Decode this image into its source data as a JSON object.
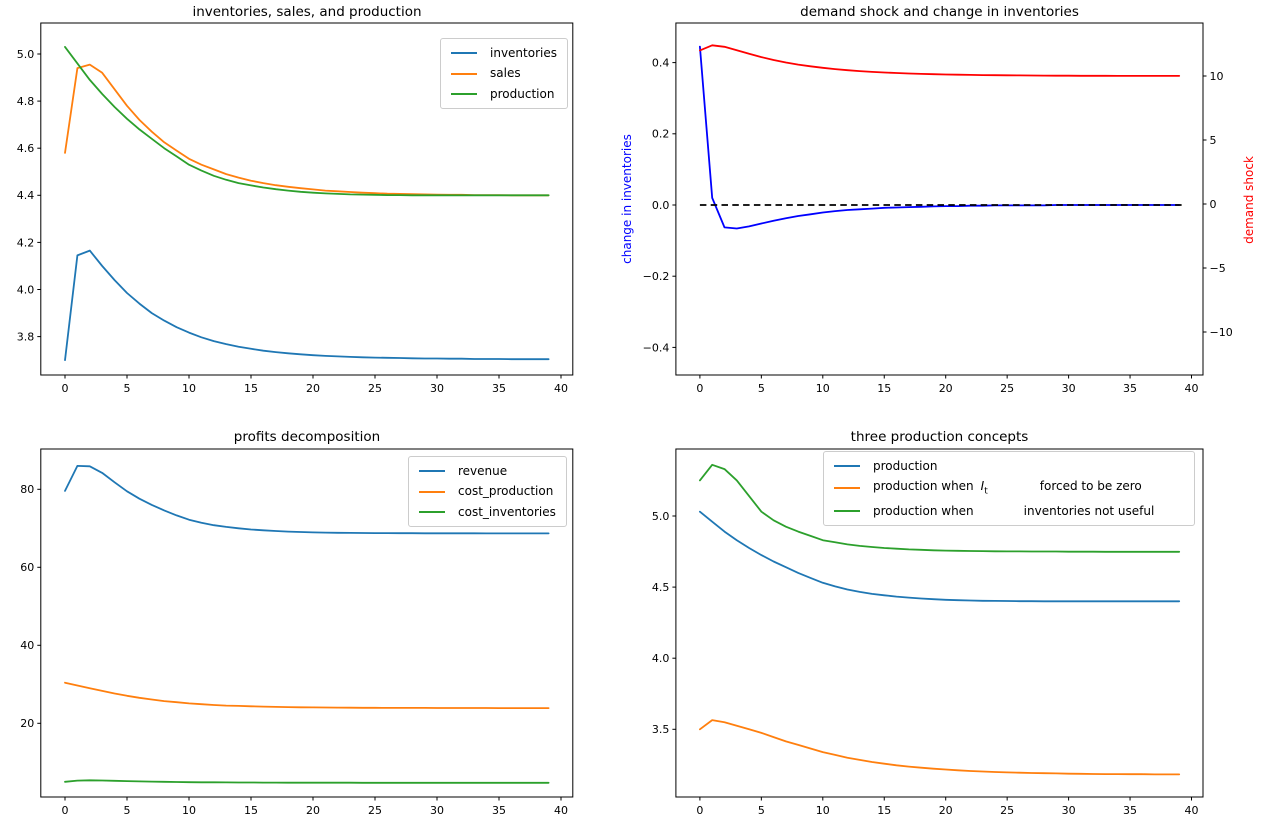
{
  "figure": {
    "background": "#ffffff"
  },
  "chart_data": [
    {
      "id": "inventories-sales-production",
      "type": "line",
      "title": "inventories, sales, and production",
      "xlabel": "",
      "ylabel": "",
      "xlim": [
        -1.95,
        40.95
      ],
      "ylim": [
        3.64,
        5.13
      ],
      "legend_position": "upper right",
      "grid": false,
      "x": {
        "start": 0,
        "end": 39,
        "count": 40
      },
      "xticks": {
        "values": [
          0,
          5,
          10,
          15,
          20,
          25,
          30,
          35,
          40
        ],
        "labels": [
          "0",
          "5",
          "10",
          "15",
          "20",
          "25",
          "30",
          "35",
          "40"
        ]
      },
      "yticks": {
        "values": [
          3.8,
          4.0,
          4.2,
          4.4,
          4.6,
          4.8,
          5.0
        ],
        "labels": [
          "3.8",
          "4.0",
          "4.2",
          "4.4",
          "4.6",
          "4.8",
          "5.0"
        ]
      },
      "series": [
        {
          "name": "inventories",
          "color": "#1f77b4",
          "values": [
            3.7,
            4.145,
            4.165,
            4.1,
            4.04,
            3.985,
            3.94,
            3.9,
            3.868,
            3.84,
            3.817,
            3.797,
            3.781,
            3.768,
            3.757,
            3.748,
            3.74,
            3.734,
            3.729,
            3.725,
            3.721,
            3.718,
            3.716,
            3.714,
            3.712,
            3.711,
            3.71,
            3.709,
            3.708,
            3.707,
            3.707,
            3.706,
            3.706,
            3.705,
            3.705,
            3.705,
            3.704,
            3.704,
            3.704,
            3.704
          ]
        },
        {
          "name": "sales",
          "color": "#ff7f0e",
          "values": [
            4.58,
            4.94,
            4.955,
            4.92,
            4.85,
            4.78,
            4.72,
            4.67,
            4.625,
            4.59,
            4.555,
            4.53,
            4.51,
            4.49,
            4.475,
            4.462,
            4.452,
            4.443,
            4.436,
            4.43,
            4.425,
            4.42,
            4.417,
            4.414,
            4.411,
            4.409,
            4.407,
            4.406,
            4.405,
            4.404,
            4.403,
            4.402,
            4.402,
            4.401,
            4.401,
            4.401,
            4.4,
            4.4,
            4.4,
            4.4
          ]
        },
        {
          "name": "production",
          "color": "#2ca02c",
          "values": [
            5.03,
            4.96,
            4.89,
            4.83,
            4.775,
            4.725,
            4.68,
            4.64,
            4.6,
            4.565,
            4.53,
            4.505,
            4.483,
            4.466,
            4.452,
            4.442,
            4.433,
            4.426,
            4.42,
            4.415,
            4.411,
            4.408,
            4.406,
            4.404,
            4.403,
            4.402,
            4.401,
            4.401,
            4.4,
            4.4,
            4.4,
            4.4,
            4.4,
            4.4,
            4.4,
            4.4,
            4.4,
            4.4,
            4.4,
            4.4
          ]
        }
      ]
    },
    {
      "id": "demand-shock-change-in-inventories",
      "type": "line",
      "title": "demand shock and change in inventories",
      "xlabel": "",
      "xlim": [
        -1.95,
        40.95
      ],
      "grid": false,
      "x": {
        "start": 0,
        "end": 39,
        "count": 40
      },
      "xticks": {
        "values": [
          0,
          5,
          10,
          15,
          20,
          25,
          30,
          35,
          40
        ],
        "labels": [
          "0",
          "5",
          "10",
          "15",
          "20",
          "25",
          "30",
          "35",
          "40"
        ]
      },
      "left_axis": {
        "label": "change in inventories",
        "color": "#0000ff",
        "ylim": [
          -0.478,
          0.511
        ]
      },
      "right_axis": {
        "label": "demand shock",
        "color": "#ff0000",
        "ylim": [
          -13.3,
          14.1
        ]
      },
      "yticks": {
        "values": [
          -0.4,
          -0.2,
          0.0,
          0.2,
          0.4
        ],
        "labels": [
          "−0.4",
          "−0.2",
          "0.0",
          "0.2",
          "0.4"
        ]
      },
      "yticks_right": {
        "values": [
          -10,
          -5,
          0,
          5,
          10
        ],
        "labels": [
          "−10",
          "−5",
          "0",
          "5",
          "10"
        ]
      },
      "zero_line": {
        "axis": "left",
        "value": 0,
        "color": "#000000",
        "style": "dashed"
      },
      "series": [
        {
          "name": "change in inventories",
          "color": "#0000ff",
          "axis": "left",
          "values": [
            0.445,
            0.02,
            -0.063,
            -0.066,
            -0.06,
            -0.052,
            -0.044,
            -0.037,
            -0.031,
            -0.026,
            -0.021,
            -0.017,
            -0.014,
            -0.012,
            -0.01,
            -0.008,
            -0.007,
            -0.006,
            -0.005,
            -0.004,
            -0.003,
            -0.003,
            -0.002,
            -0.002,
            -0.001,
            -0.001,
            -0.001,
            -0.001,
            -0.001,
            0,
            0,
            0,
            0,
            0,
            0,
            0,
            0,
            0,
            0,
            0
          ]
        },
        {
          "name": "demand shock",
          "color": "#ff0000",
          "axis": "right",
          "values": [
            12.0,
            12.4,
            12.28,
            12.016,
            11.735,
            11.477,
            11.249,
            11.056,
            10.893,
            10.755,
            10.638,
            10.539,
            10.455,
            10.384,
            10.324,
            10.274,
            10.232,
            10.196,
            10.166,
            10.14,
            10.118,
            10.1,
            10.085,
            10.072,
            10.061,
            10.051,
            10.043,
            10.037,
            10.031,
            10.026,
            10.022,
            10.019,
            10.016,
            10.013,
            10.011,
            10.01,
            10.008,
            10.007,
            10.006,
            10.005
          ]
        }
      ]
    },
    {
      "id": "profits-decomposition",
      "type": "line",
      "title": "profits decomposition",
      "xlabel": "",
      "ylabel": "",
      "xlim": [
        -1.95,
        40.95
      ],
      "ylim": [
        1.1,
        90.3
      ],
      "legend_position": "upper right",
      "grid": false,
      "x": {
        "start": 0,
        "end": 39,
        "count": 40
      },
      "xticks": {
        "values": [
          0,
          5,
          10,
          15,
          20,
          25,
          30,
          35,
          40
        ],
        "labels": [
          "0",
          "5",
          "10",
          "15",
          "20",
          "25",
          "30",
          "35",
          "40"
        ]
      },
      "yticks": {
        "values": [
          20,
          40,
          60,
          80
        ],
        "labels": [
          "20",
          "40",
          "60",
          "80"
        ]
      },
      "series": [
        {
          "name": "revenue",
          "color": "#1f77b4",
          "values": [
            79.6,
            86.0,
            85.9,
            84.2,
            81.8,
            79.5,
            77.6,
            76.0,
            74.6,
            73.3,
            72.2,
            71.4,
            70.8,
            70.35,
            70.0,
            69.7,
            69.5,
            69.3,
            69.15,
            69.05,
            68.95,
            68.9,
            68.85,
            68.82,
            68.8,
            68.78,
            68.76,
            68.75,
            68.74,
            68.73,
            68.72,
            68.72,
            68.71,
            68.71,
            68.7,
            68.7,
            68.7,
            68.7,
            68.7,
            68.7
          ]
        },
        {
          "name": "cost_production",
          "color": "#ff7f0e",
          "values": [
            30.4,
            29.7,
            29.0,
            28.3,
            27.65,
            27.05,
            26.55,
            26.1,
            25.7,
            25.4,
            25.1,
            24.9,
            24.7,
            24.55,
            24.45,
            24.35,
            24.27,
            24.2,
            24.15,
            24.1,
            24.07,
            24.04,
            24.02,
            24.0,
            23.98,
            23.97,
            23.96,
            23.95,
            23.94,
            23.94,
            23.93,
            23.93,
            23.92,
            23.92,
            23.92,
            23.91,
            23.91,
            23.91,
            23.91,
            23.91
          ]
        },
        {
          "name": "cost_inventories",
          "color": "#2ca02c",
          "values": [
            5.0,
            5.3,
            5.38,
            5.33,
            5.25,
            5.17,
            5.1,
            5.04,
            4.99,
            4.95,
            4.91,
            4.88,
            4.86,
            4.84,
            4.82,
            4.81,
            4.8,
            4.79,
            4.78,
            4.775,
            4.77,
            4.765,
            4.76,
            4.758,
            4.755,
            4.753,
            4.751,
            4.75,
            4.749,
            4.748,
            4.747,
            4.746,
            4.745,
            4.745,
            4.744,
            4.744,
            4.743,
            4.743,
            4.743,
            4.743
          ]
        }
      ]
    },
    {
      "id": "three-production-concepts",
      "type": "line",
      "title": "three production concepts",
      "xlabel": "",
      "ylabel": "",
      "xlim": [
        -1.95,
        40.95
      ],
      "ylim": [
        3.02,
        5.47
      ],
      "legend_position": "upper center-right",
      "grid": false,
      "x": {
        "start": 0,
        "end": 39,
        "count": 40
      },
      "xticks": {
        "values": [
          0,
          5,
          10,
          15,
          20,
          25,
          30,
          35,
          40
        ],
        "labels": [
          "0",
          "5",
          "10",
          "15",
          "20",
          "25",
          "30",
          "35",
          "40"
        ]
      },
      "yticks": {
        "values": [
          3.5,
          4.0,
          4.5,
          5.0
        ],
        "labels": [
          "3.5",
          "4.0",
          "4.5",
          "5.0"
        ]
      },
      "series": [
        {
          "name": "production",
          "color": "#1f77b4",
          "legend": {
            "prefix": "production",
            "suffix": ""
          },
          "values": [
            5.03,
            4.96,
            4.89,
            4.83,
            4.775,
            4.725,
            4.68,
            4.64,
            4.6,
            4.565,
            4.53,
            4.505,
            4.483,
            4.466,
            4.452,
            4.442,
            4.433,
            4.426,
            4.42,
            4.415,
            4.411,
            4.408,
            4.406,
            4.404,
            4.403,
            4.402,
            4.401,
            4.401,
            4.4,
            4.4,
            4.4,
            4.4,
            4.4,
            4.4,
            4.4,
            4.4,
            4.4,
            4.4,
            4.4,
            4.4
          ]
        },
        {
          "name": "production when I_t forced to be zero",
          "color": "#ff7f0e",
          "legend": {
            "prefix": "production when",
            "math_base": "I",
            "math_sub": "t",
            "suffix": "forced to be zero"
          },
          "values": [
            3.5,
            3.565,
            3.55,
            3.525,
            3.5,
            3.475,
            3.445,
            3.415,
            3.39,
            3.365,
            3.34,
            3.32,
            3.3,
            3.285,
            3.27,
            3.258,
            3.247,
            3.238,
            3.23,
            3.223,
            3.217,
            3.212,
            3.207,
            3.203,
            3.2,
            3.197,
            3.195,
            3.193,
            3.191,
            3.19,
            3.188,
            3.187,
            3.186,
            3.185,
            3.185,
            3.184,
            3.184,
            3.183,
            3.183,
            3.183
          ]
        },
        {
          "name": "production when inventories not useful",
          "color": "#2ca02c",
          "legend": {
            "prefix": "production when",
            "suffix": "inventories not useful"
          },
          "values": [
            5.25,
            5.36,
            5.33,
            5.25,
            5.14,
            5.03,
            4.97,
            4.925,
            4.89,
            4.86,
            4.83,
            4.815,
            4.8,
            4.79,
            4.782,
            4.775,
            4.77,
            4.765,
            4.762,
            4.759,
            4.757,
            4.755,
            4.754,
            4.753,
            4.752,
            4.751,
            4.751,
            4.75,
            4.75,
            4.75,
            4.749,
            4.749,
            4.749,
            4.748,
            4.748,
            4.748,
            4.748,
            4.748,
            4.748,
            4.748
          ]
        }
      ]
    }
  ]
}
